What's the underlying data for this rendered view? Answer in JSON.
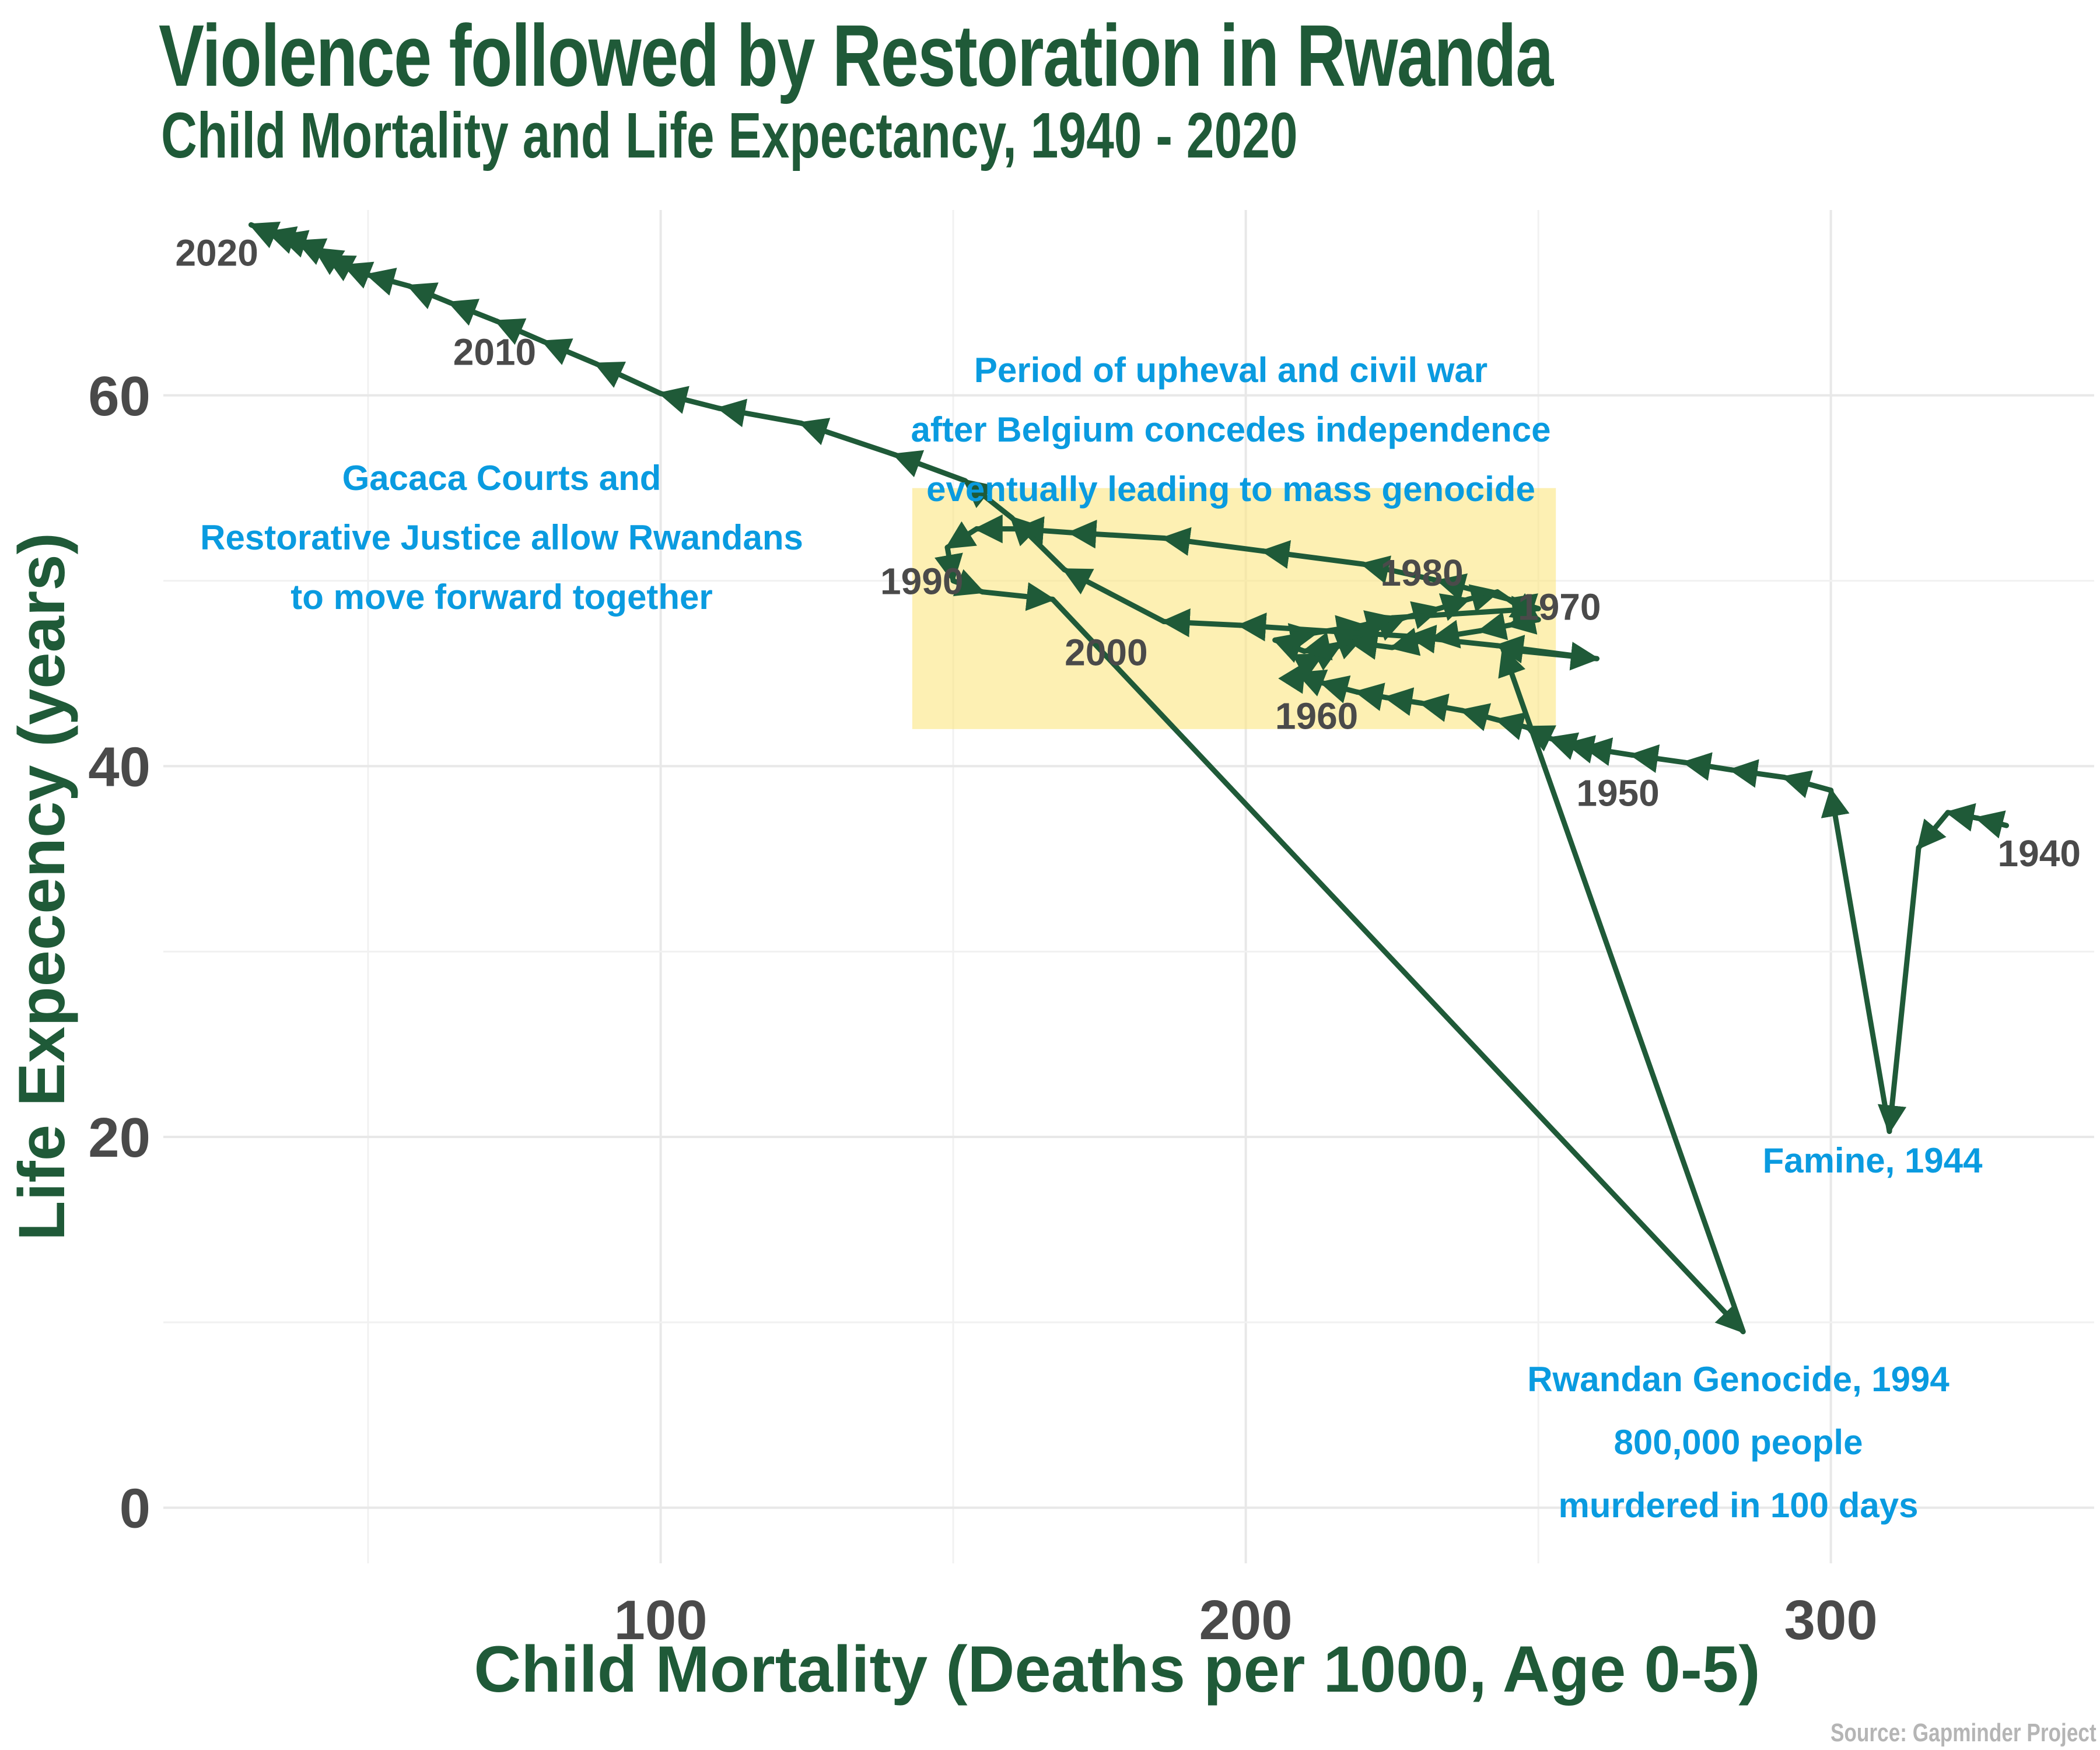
{
  "title": "Violence followed by Restoration in Rwanda",
  "subtitle": "Child Mortality and Life Expectancy, 1940 - 2020",
  "source": "Source: Gapminder Project",
  "colors": {
    "line": "#1f5a38",
    "highlight_box": "#fce680",
    "annotation": "#0a9be0",
    "year_label": "#4a4a4a"
  },
  "chart_data": {
    "type": "line",
    "xlabel": "Child Mortality (Deaths per 1000, Age 0-5)",
    "ylabel": "Life Expecency (years)",
    "xlim": [
      15,
      345
    ],
    "ylim": [
      -3,
      70
    ],
    "xticks": [
      100,
      200,
      300
    ],
    "yticks": [
      0,
      20,
      40,
      60
    ],
    "xtick_labels": [
      "100",
      "200",
      "300"
    ],
    "ytick_labels": [
      "0",
      "20",
      "40",
      "60"
    ],
    "grid": true,
    "series": [
      {
        "name": "Rwanda",
        "years": [
          1940,
          1941,
          1942,
          1943,
          1944,
          1945,
          1946,
          1947,
          1948,
          1949,
          1950,
          1951,
          1952,
          1953,
          1954,
          1955,
          1956,
          1957,
          1958,
          1959,
          1960,
          1961,
          1962,
          1963,
          1964,
          1965,
          1966,
          1967,
          1968,
          1969,
          1970,
          1971,
          1972,
          1973,
          1974,
          1975,
          1976,
          1977,
          1978,
          1979,
          1980,
          1981,
          1982,
          1983,
          1984,
          1985,
          1986,
          1987,
          1988,
          1989,
          1990,
          1991,
          1992,
          1993,
          1994,
          1995,
          1996,
          1997,
          1998,
          1999,
          2000,
          2001,
          2002,
          2003,
          2004,
          2005,
          2006,
          2007,
          2008,
          2009,
          2010,
          2011,
          2012,
          2013,
          2014,
          2015,
          2016,
          2017,
          2018,
          2019,
          2020
        ],
        "x": [
          330,
          325,
          320,
          315,
          310,
          300,
          292,
          283,
          275,
          266,
          258,
          255,
          252,
          248,
          243,
          237,
          230,
          224,
          219,
          213,
          209,
          210,
          213,
          216,
          220,
          223,
          227,
          233,
          238,
          243,
          250,
          245,
          240,
          232,
          225,
          218,
          210,
          205,
          212,
          220,
          225,
          250,
          245,
          233,
          220,
          203,
          186,
          170,
          161,
          154,
          149,
          150,
          155,
          167,
          285,
          244,
          260,
          243,
          228,
          199,
          186,
          169,
          160,
          152,
          140,
          124,
          110,
          100,
          89,
          80,
          72,
          64,
          57,
          50,
          46,
          43,
          41,
          38,
          35,
          33,
          30
        ],
        "y": [
          36.8,
          37.2,
          37.5,
          35.6,
          20.3,
          38.7,
          39.4,
          39.8,
          40.2,
          40.6,
          41.0,
          41.2,
          41.5,
          42.1,
          42.5,
          43.0,
          43.4,
          43.7,
          44.0,
          44.5,
          45.0,
          45.5,
          46.0,
          46.5,
          47.0,
          47.5,
          48.0,
          48.5,
          49.0,
          49.4,
          47.9,
          47.6,
          47.3,
          46.9,
          46.4,
          46.7,
          46.2,
          46.8,
          47.2,
          47.6,
          48.0,
          48.5,
          49.0,
          50.0,
          50.9,
          51.6,
          52.3,
          52.6,
          52.8,
          52.8,
          51.8,
          50.0,
          49.4,
          49.0,
          9.5,
          46.3,
          45.8,
          46.5,
          47.0,
          47.6,
          47.8,
          50.6,
          53.4,
          55.4,
          56.8,
          58.5,
          59.3,
          60.1,
          61.7,
          62.9,
          64.0,
          65.0,
          65.9,
          66.5,
          67.0,
          67.5,
          67.9,
          68.3,
          68.6,
          68.8,
          69.2
        ]
      }
    ],
    "year_labels": [
      {
        "text": "1940",
        "year": 1940
      },
      {
        "text": "1950",
        "year": 1950
      },
      {
        "text": "1960",
        "year": 1960
      },
      {
        "text": "1970",
        "year": 1970
      },
      {
        "text": "1980",
        "year": 1980
      },
      {
        "text": "1990",
        "year": 1990
      },
      {
        "text": "2000",
        "year": 2000
      },
      {
        "text": "2010",
        "year": 2010
      },
      {
        "text": "2020",
        "year": 2020
      }
    ],
    "highlight_region": {
      "x": [
        143,
        253
      ],
      "y": [
        42,
        55
      ]
    },
    "annotations": [
      {
        "lines": [
          "Period of upheval and civil war",
          "after Belgium concedes independence",
          "eventually leading to mass genocide"
        ]
      },
      {
        "lines": [
          "Gacaca Courts and",
          "Restorative Justice allow Rwandans",
          "to move forward together"
        ]
      },
      {
        "lines": [
          "Famine, 1944"
        ]
      },
      {
        "lines": [
          "Rwandan Genocide, 1994",
          "800,000 people",
          "murdered  in 100 days"
        ]
      }
    ]
  }
}
